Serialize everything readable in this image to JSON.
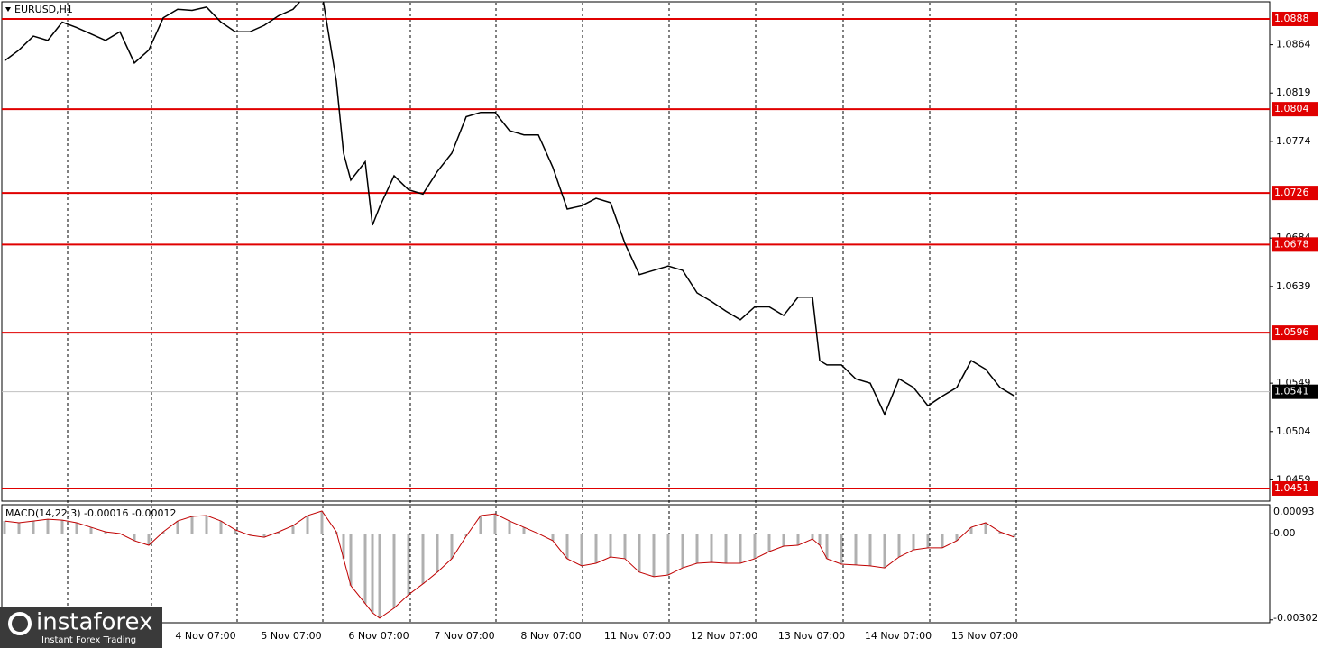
{
  "chart_data": [
    {
      "type": "line",
      "title": "EURUSD,H1",
      "x": [
        0,
        4,
        8,
        12,
        16,
        20,
        24,
        28,
        32,
        36,
        40,
        44,
        48,
        52,
        56,
        60,
        64,
        68,
        72,
        76,
        80,
        84,
        88,
        92,
        94,
        96,
        100,
        102,
        104,
        108,
        112,
        116,
        120,
        124,
        128,
        132,
        136,
        140,
        144,
        148,
        152,
        156,
        160,
        164,
        168,
        172,
        176,
        180,
        184,
        188,
        192,
        196,
        200,
        204,
        208,
        212,
        216,
        220,
        224,
        226,
        228,
        232,
        236,
        240,
        244,
        248,
        252,
        256,
        260,
        264,
        268,
        272,
        276,
        280
      ],
      "series": [
        {
          "color": "#000000",
          "values": [
            1.0849,
            1.0859,
            1.0872,
            1.0868,
            1.0885,
            1.088,
            1.0874,
            1.0868,
            1.0876,
            1.0847,
            1.0859,
            1.0889,
            1.0897,
            1.0896,
            1.0899,
            1.0885,
            1.0876,
            1.0876,
            1.0882,
            1.0891,
            1.0897,
            1.0912,
            1.0912,
            1.083,
            1.0763,
            1.0738,
            1.0755,
            1.0696,
            1.0713,
            1.0742,
            1.0729,
            1.0725,
            1.0746,
            1.0763,
            1.0797,
            1.0801,
            1.0801,
            1.0784,
            1.078,
            1.078,
            1.075,
            1.0711,
            1.0714,
            1.0721,
            1.0717,
            1.0679,
            1.065,
            1.0654,
            1.0658,
            1.0654,
            1.0633,
            1.0625,
            1.0616,
            1.0608,
            1.062,
            1.062,
            1.0612,
            1.0629,
            1.0629,
            1.057,
            1.0566,
            1.0566,
            1.0553,
            1.0549,
            1.052,
            1.0553,
            1.0545,
            1.0528,
            1.0537,
            1.0545,
            1.057,
            1.0562,
            1.0545,
            1.0537
          ]
        }
      ],
      "levels": {
        "color": "#e00000",
        "values": [
          1.0888,
          1.0804,
          1.0726,
          1.0678,
          1.0596,
          1.0451
        ]
      },
      "current_price": 1.0541,
      "xlim": [
        -1.25,
        350.75
      ],
      "xticks": [
        {
          "value": 17.5,
          "label": null
        },
        {
          "value": 40.75,
          "label": null
        },
        {
          "value": 64.5,
          "label": "4 Nov 07:00"
        },
        {
          "value": 88.25,
          "label": "5 Nov 07:00"
        },
        {
          "value": 112.5,
          "label": "6 Nov 07:00"
        },
        {
          "value": 136.25,
          "label": "7 Nov 07:00"
        },
        {
          "value": 160.25,
          "label": "8 Nov 07:00"
        },
        {
          "value": 184.25,
          "label": "11 Nov 07:00"
        },
        {
          "value": 208.25,
          "label": "12 Nov 07:00"
        },
        {
          "value": 232.5,
          "label": "13 Nov 07:00"
        },
        {
          "value": 256.5,
          "label": "14 Nov 07:00"
        },
        {
          "value": 280.5,
          "label": "15 Nov 07:00"
        }
      ],
      "ylim": [
        1.04384,
        1.09056
      ],
      "yticks": [
        1.0864,
        1.0819,
        1.0774,
        1.0684,
        1.0639,
        1.0549,
        1.0504,
        1.0459
      ]
    },
    {
      "type": "bar",
      "title": "MACD(14,22,3) -0.00016 -0.00012",
      "color": "#b0b0b0",
      "line_color": "#c00000",
      "values": [
        0.00044,
        0.00038,
        0.00044,
        0.0005,
        0.00047,
        0.00038,
        0.00022,
        6e-05,
        0,
        -0.00025,
        -0.00041,
        6e-05,
        0.00044,
        0.0006,
        0.00063,
        0.00044,
        0.00013,
        -6e-05,
        -0.00013,
        6e-05,
        0.00028,
        0.00063,
        0.00079,
        6e-05,
        -0.00088,
        -0.00182,
        -0.00245,
        -0.00277,
        -0.00296,
        -0.00261,
        -0.00214,
        -0.00176,
        -0.00135,
        -0.00088,
        -9e-05,
        0.00063,
        0.00069,
        0.00044,
        0.00022,
        0,
        -0.00025,
        -0.00088,
        -0.00113,
        -0.00104,
        -0.00082,
        -0.00088,
        -0.00135,
        -0.00151,
        -0.00145,
        -0.0012,
        -0.00104,
        -0.00101,
        -0.00104,
        -0.00104,
        -0.00088,
        -0.00063,
        -0.00044,
        -0.00041,
        -0.00019,
        -0.00041,
        -0.00088,
        -0.00107,
        -0.0011,
        -0.00113,
        -0.0012,
        -0.00082,
        -0.00057,
        -0.0005,
        -0.0005,
        -0.00025,
        0.00022,
        0.00038,
        6e-05,
        -0.00013
      ],
      "ylim": [
        -0.00309,
        0.00101
      ],
      "yticks": [
        0.00093,
        {
          "value": 0,
          "label": "0.00"
        },
        -0.00302
      ]
    }
  ],
  "logo": {
    "brand": "instaforex",
    "tagline": "Instant Forex Trading"
  }
}
